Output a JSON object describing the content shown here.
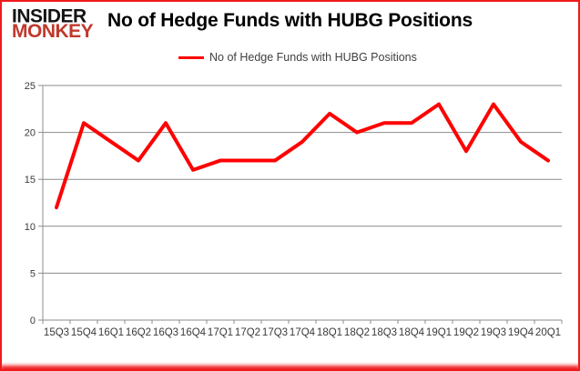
{
  "logo": {
    "line1": "INSIDER",
    "line2": "MONKEY"
  },
  "header": {
    "title": "No of Hedge Funds with HUBG Positions"
  },
  "legend": {
    "label": "No of Hedge Funds with HUBG Positions"
  },
  "chart_data": {
    "type": "line",
    "title": "No of Hedge Funds with HUBG Positions",
    "categories": [
      "15Q3",
      "15Q4",
      "16Q1",
      "16Q2",
      "16Q3",
      "16Q4",
      "17Q1",
      "17Q2",
      "17Q3",
      "17Q4",
      "18Q1",
      "18Q2",
      "18Q3",
      "18Q4",
      "19Q1",
      "19Q2",
      "19Q3",
      "19Q4",
      "20Q1"
    ],
    "series": [
      {
        "name": "No of Hedge Funds with HUBG Positions",
        "color": "#ff0000",
        "values": [
          12,
          21,
          19,
          17,
          21,
          16,
          17,
          17,
          17,
          19,
          22,
          20,
          21,
          21,
          23,
          18,
          23,
          19,
          17
        ]
      }
    ],
    "xlabel": "",
    "ylabel": "",
    "ylim": [
      0,
      25
    ],
    "yticks": [
      0,
      5,
      10,
      15,
      20,
      25
    ],
    "grid": true,
    "legend_position": "top-center"
  },
  "colors": {
    "line_red": "#ff0000",
    "logo_black": "#141414",
    "logo_red": "#c0392b",
    "border_red": "#ee1b1b",
    "grid_gray": "#8c8c8c",
    "axis_text": "#3a3a3a",
    "title_text": "#000000",
    "legend_text": "#3f3f3f"
  }
}
